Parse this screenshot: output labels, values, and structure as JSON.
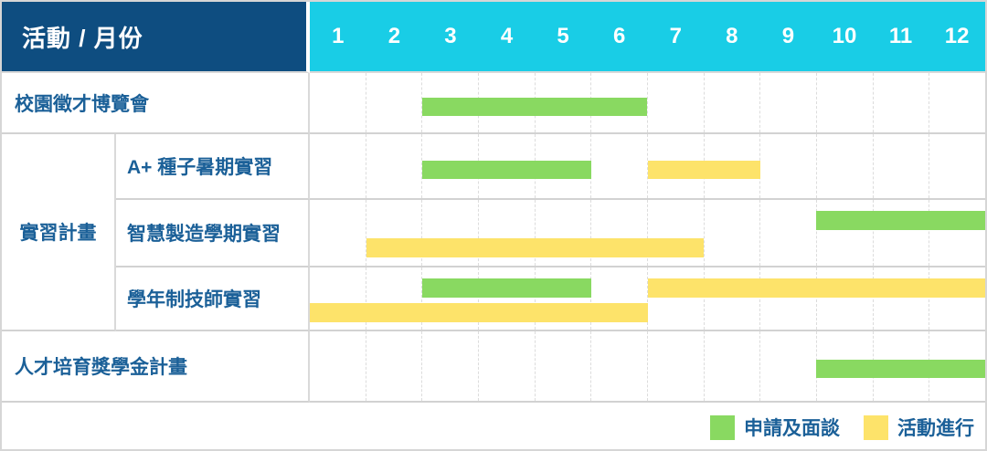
{
  "colors": {
    "header_bg": "#0e4d80",
    "month_axis_bg": "#19cde6",
    "header_text": "#ffffff",
    "label_text": "#1b6098",
    "green": "#89d961",
    "yellow": "#fde36a",
    "grid_line": "#dcdcdc",
    "row_line": "#d2d2d2"
  },
  "chart_data": {
    "type": "gantt",
    "title": "活動 / 月份",
    "corner_label": "活動 / 月份",
    "x_axis_label": "月份",
    "months": [
      "1",
      "2",
      "3",
      "4",
      "5",
      "6",
      "7",
      "8",
      "9",
      "10",
      "11",
      "12"
    ],
    "x_range": [
      1,
      12
    ],
    "grid": "dashed-vertical-per-month",
    "group": {
      "label": "實習計畫",
      "row_indexes": [
        1,
        2,
        3
      ]
    },
    "rows": [
      {
        "label": "校園徵才博覽會",
        "bars": [
          {
            "color": "green",
            "from_month": 3,
            "to_month": 6,
            "lane": "single"
          }
        ]
      },
      {
        "label": "A+ 種子暑期實習",
        "bars": [
          {
            "color": "green",
            "from_month": 3,
            "to_month": 5,
            "lane": "single"
          },
          {
            "color": "yellow",
            "from_month": 7,
            "to_month": 8,
            "lane": "single"
          }
        ]
      },
      {
        "label": "智慧製造學期實習",
        "bars": [
          {
            "color": "green",
            "from_month": 10,
            "to_month": 12,
            "lane": "top"
          },
          {
            "color": "yellow",
            "from_month": 2,
            "to_month": 7,
            "lane": "bottom"
          }
        ]
      },
      {
        "label": "學年制技師實習",
        "bars": [
          {
            "color": "green",
            "from_month": 3,
            "to_month": 5,
            "lane": "top"
          },
          {
            "color": "yellow",
            "from_month": 7,
            "to_month": 12,
            "lane": "top"
          },
          {
            "color": "yellow",
            "from_month": 1,
            "to_month": 6,
            "lane": "bottom"
          }
        ]
      },
      {
        "label": "人才培育獎學金計畫",
        "bars": [
          {
            "color": "green",
            "from_month": 10,
            "to_month": 12,
            "lane": "single"
          }
        ]
      }
    ],
    "legend": [
      {
        "color": "green",
        "label": "申請及面談"
      },
      {
        "color": "yellow",
        "label": "活動進行"
      }
    ],
    "legend_position": "bottom-right"
  }
}
